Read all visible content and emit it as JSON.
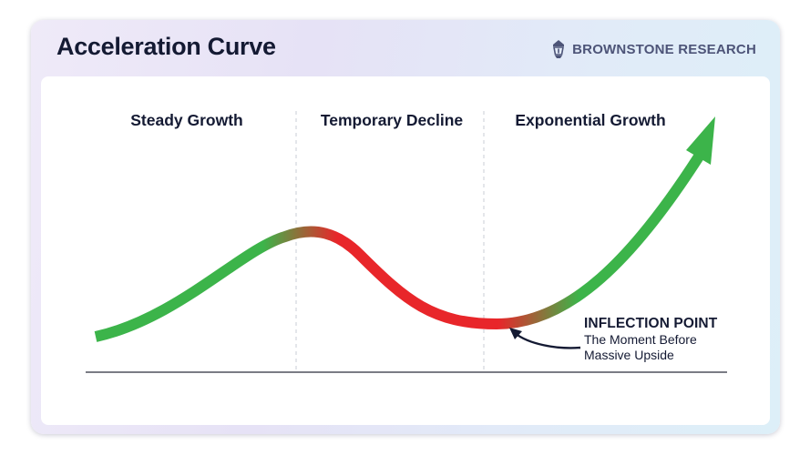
{
  "header": {
    "title": "Acceleration Curve",
    "brand": "BROWNSTONE RESEARCH",
    "brand_icon": "lantern-logo-icon"
  },
  "sections": [
    {
      "label": "Steady Growth"
    },
    {
      "label": "Temporary Decline"
    },
    {
      "label": "Exponential Growth"
    }
  ],
  "callout": {
    "title": "INFLECTION POINT",
    "line1": "The Moment Before",
    "line2": "Massive Upside"
  },
  "colors": {
    "growth": "#3cb44a",
    "decline": "#e8262a",
    "text": "#141a33",
    "brand": "#4d5478"
  }
}
